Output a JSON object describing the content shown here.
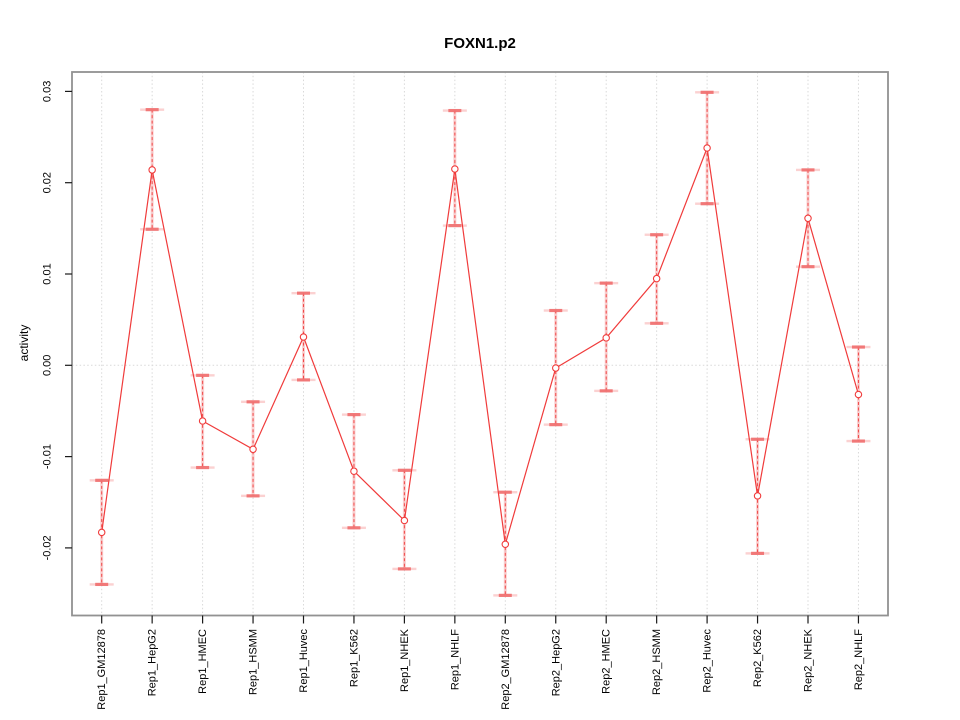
{
  "chart_data": {
    "type": "line",
    "title": "FOXN1.p2",
    "ylabel": "activity",
    "xlabel": "",
    "legend_position": "none",
    "grid": {
      "vertical": "dotted line at every category",
      "horizontal": "dotted line at y=0 only"
    },
    "categories": [
      "Rep1_GM12878",
      "Rep1_HepG2",
      "Rep1_HMEC",
      "Rep1_HSMM",
      "Rep1_Huvec",
      "Rep1_K562",
      "Rep1_NHEK",
      "Rep1_NHLF",
      "Rep2_GM12878",
      "Rep2_HepG2",
      "Rep2_HMEC",
      "Rep2_HSMM",
      "Rep2_Huvec",
      "Rep2_K562",
      "Rep2_NHEK",
      "Rep2_NHLF"
    ],
    "series": [
      {
        "name": "activity",
        "marker": "open-circle",
        "values": [
          -0.0183,
          0.0214,
          -0.0061,
          -0.0092,
          0.0031,
          -0.0116,
          -0.017,
          0.0215,
          -0.0196,
          -0.0003,
          0.003,
          0.0095,
          0.0238,
          -0.0143,
          0.0161,
          -0.0032
        ],
        "err_lo": [
          -0.024,
          0.0149,
          -0.0112,
          -0.0143,
          -0.0016,
          -0.0178,
          -0.0223,
          0.0153,
          -0.0252,
          -0.0065,
          -0.0028,
          0.0046,
          0.0177,
          -0.0206,
          0.0108,
          -0.0083
        ],
        "err_hi": [
          -0.0126,
          0.028,
          -0.0011,
          -0.004,
          0.0079,
          -0.0054,
          -0.0115,
          0.0279,
          -0.0139,
          0.006,
          0.009,
          0.0143,
          0.0299,
          -0.0081,
          0.0214,
          0.002
        ]
      }
    ],
    "yticks": [
      {
        "v": 0.03,
        "label": "0.03"
      },
      {
        "v": 0.02,
        "label": "0.02"
      },
      {
        "v": 0.01,
        "label": "0.01"
      },
      {
        "v": 0.0,
        "label": "0.00"
      },
      {
        "v": -0.01,
        "label": "-0.01"
      },
      {
        "v": -0.02,
        "label": "-0.02"
      }
    ],
    "ylim": [
      -0.0274,
      0.0321
    ],
    "colors": {
      "line": "#f03b3b",
      "marker_stroke": "#f03b3b",
      "marker_fill": "#ffffff",
      "error_halo": "#f79a9a",
      "error_cap": "#f06e6e",
      "gridline": "#d9d9d9",
      "box": "#929292",
      "tick": "#1a1a1a",
      "text": "#000000"
    }
  }
}
